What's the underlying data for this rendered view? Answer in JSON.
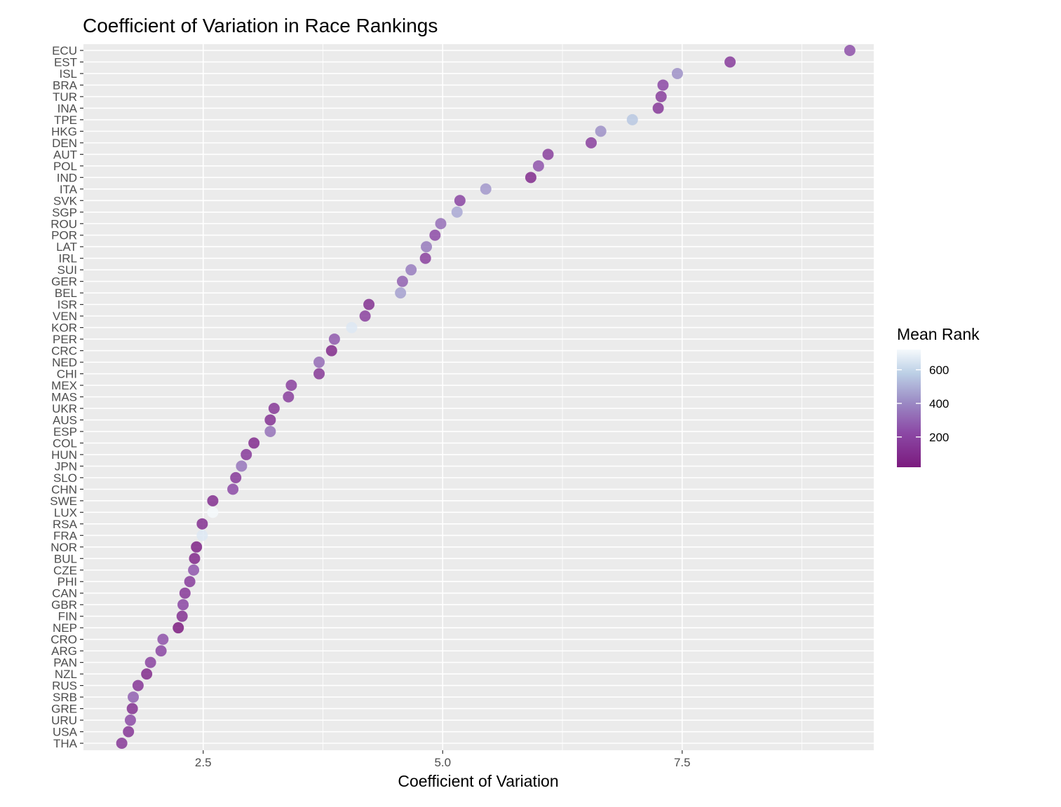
{
  "chart_data": {
    "type": "scatter",
    "title": "Coefficient of Variation in Race Rankings",
    "xlabel": "Coefficient of Variation",
    "ylabel": "",
    "xlim": [
      1.25,
      9.5
    ],
    "x_ticks": [
      2.5,
      5.0,
      7.5
    ],
    "x_tick_labels": [
      "2.5",
      "5.0",
      "7.5"
    ],
    "grid": true,
    "color_scale": {
      "title": "Mean Rank",
      "range": [
        20,
        720
      ],
      "ticks": [
        200,
        400,
        600
      ],
      "tick_labels": [
        "200",
        "400",
        "600"
      ],
      "low_color": "#7b1a7e",
      "mid_color": "#9b8ac4",
      "high_color": "#f5f9fc"
    },
    "legend_placement": "right",
    "points": [
      {
        "country": "ECU",
        "cv": 9.25,
        "mean_rank": 250
      },
      {
        "country": "EST",
        "cv": 8.0,
        "mean_rank": 170
      },
      {
        "country": "ISL",
        "cv": 7.45,
        "mean_rank": 420
      },
      {
        "country": "BRA",
        "cv": 7.3,
        "mean_rank": 220
      },
      {
        "country": "TUR",
        "cv": 7.28,
        "mean_rank": 180
      },
      {
        "country": "INA",
        "cv": 7.25,
        "mean_rank": 160
      },
      {
        "country": "TPE",
        "cv": 6.98,
        "mean_rank": 560
      },
      {
        "country": "HKG",
        "cv": 6.65,
        "mean_rank": 420
      },
      {
        "country": "DEN",
        "cv": 6.55,
        "mean_rank": 190
      },
      {
        "country": "AUT",
        "cv": 6.1,
        "mean_rank": 180
      },
      {
        "country": "POL",
        "cv": 6.0,
        "mean_rank": 260
      },
      {
        "country": "IND",
        "cv": 5.92,
        "mean_rank": 100
      },
      {
        "country": "ITA",
        "cv": 5.45,
        "mean_rank": 440
      },
      {
        "country": "SVK",
        "cv": 5.18,
        "mean_rank": 210
      },
      {
        "country": "SGP",
        "cv": 5.15,
        "mean_rank": 480
      },
      {
        "country": "ROU",
        "cv": 4.98,
        "mean_rank": 330
      },
      {
        "country": "POR",
        "cv": 4.92,
        "mean_rank": 230
      },
      {
        "country": "LAT",
        "cv": 4.83,
        "mean_rank": 360
      },
      {
        "country": "IRL",
        "cv": 4.82,
        "mean_rank": 190
      },
      {
        "country": "SUI",
        "cv": 4.67,
        "mean_rank": 370
      },
      {
        "country": "GER",
        "cv": 4.58,
        "mean_rank": 290
      },
      {
        "country": "BEL",
        "cv": 4.56,
        "mean_rank": 460
      },
      {
        "country": "ISR",
        "cv": 4.23,
        "mean_rank": 120
      },
      {
        "country": "VEN",
        "cv": 4.19,
        "mean_rank": 190
      },
      {
        "country": "KOR",
        "cv": 4.05,
        "mean_rank": 660
      },
      {
        "country": "PER",
        "cv": 3.87,
        "mean_rank": 270
      },
      {
        "country": "CRC",
        "cv": 3.84,
        "mean_rank": 90
      },
      {
        "country": "NED",
        "cv": 3.71,
        "mean_rank": 320
      },
      {
        "country": "CHI",
        "cv": 3.71,
        "mean_rank": 150
      },
      {
        "country": "MEX",
        "cv": 3.42,
        "mean_rank": 190
      },
      {
        "country": "MAS",
        "cv": 3.39,
        "mean_rank": 180
      },
      {
        "country": "UKR",
        "cv": 3.24,
        "mean_rank": 150
      },
      {
        "country": "AUS",
        "cv": 3.2,
        "mean_rank": 130
      },
      {
        "country": "ESP",
        "cv": 3.2,
        "mean_rank": 340
      },
      {
        "country": "COL",
        "cv": 3.03,
        "mean_rank": 100
      },
      {
        "country": "HUN",
        "cv": 2.95,
        "mean_rank": 160
      },
      {
        "country": "JPN",
        "cv": 2.9,
        "mean_rank": 350
      },
      {
        "country": "SLO",
        "cv": 2.84,
        "mean_rank": 160
      },
      {
        "country": "CHN",
        "cv": 2.81,
        "mean_rank": 230
      },
      {
        "country": "SWE",
        "cv": 2.6,
        "mean_rank": 110
      },
      {
        "country": "LUX",
        "cv": 2.6,
        "mean_rank": 720
      },
      {
        "country": "RSA",
        "cv": 2.49,
        "mean_rank": 110
      },
      {
        "country": "FRA",
        "cv": 2.49,
        "mean_rank": 660
      },
      {
        "country": "NOR",
        "cv": 2.43,
        "mean_rank": 60
      },
      {
        "country": "BUL",
        "cv": 2.41,
        "mean_rank": 80
      },
      {
        "country": "CZE",
        "cv": 2.4,
        "mean_rank": 260
      },
      {
        "country": "PHI",
        "cv": 2.36,
        "mean_rank": 170
      },
      {
        "country": "CAN",
        "cv": 2.31,
        "mean_rank": 150
      },
      {
        "country": "GBR",
        "cv": 2.29,
        "mean_rank": 210
      },
      {
        "country": "FIN",
        "cv": 2.28,
        "mean_rank": 120
      },
      {
        "country": "NEP",
        "cv": 2.24,
        "mean_rank": 30
      },
      {
        "country": "CRO",
        "cv": 2.08,
        "mean_rank": 250
      },
      {
        "country": "ARG",
        "cv": 2.06,
        "mean_rank": 210
      },
      {
        "country": "PAN",
        "cv": 1.95,
        "mean_rank": 200
      },
      {
        "country": "NZL",
        "cv": 1.91,
        "mean_rank": 90
      },
      {
        "country": "RUS",
        "cv": 1.82,
        "mean_rank": 140
      },
      {
        "country": "SRB",
        "cv": 1.77,
        "mean_rank": 290
      },
      {
        "country": "GRE",
        "cv": 1.76,
        "mean_rank": 120
      },
      {
        "country": "URU",
        "cv": 1.74,
        "mean_rank": 230
      },
      {
        "country": "USA",
        "cv": 1.72,
        "mean_rank": 140
      },
      {
        "country": "THA",
        "cv": 1.65,
        "mean_rank": 150
      }
    ]
  }
}
